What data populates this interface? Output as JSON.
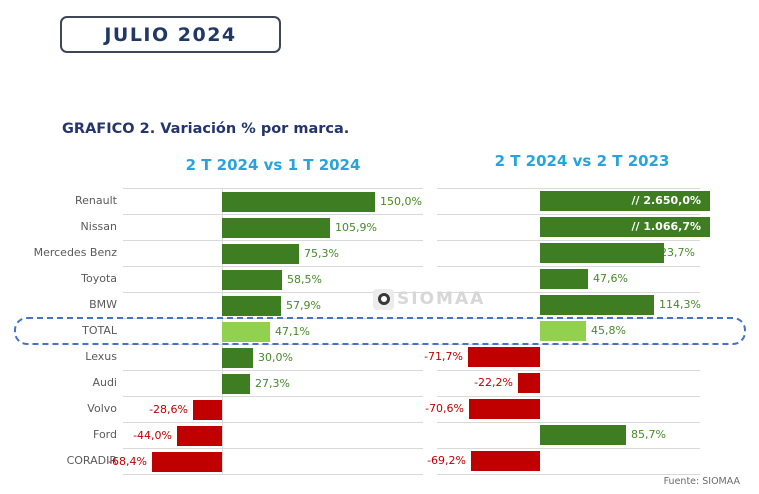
{
  "period_badge": "JULIO 2024",
  "page_title": "GRAFICO 2. Variación % por marca.",
  "watermark_text": "SIOMAA",
  "footer_source": "Fuente: SIOMAA",
  "chart_data": {
    "type": "bar",
    "orientation": "horizontal",
    "grid": "row-separator-lines",
    "legend_position": "none",
    "categories": [
      "Renault",
      "Nissan",
      "Mercedes Benz",
      "Toyota",
      "BMW",
      "TOTAL",
      "Lexus",
      "Audi",
      "Volvo",
      "Ford",
      "CORADIR"
    ],
    "highlight_category": "TOTAL",
    "panels": [
      {
        "title": "2 T 2024 vs 1 T 2024",
        "axis_range_pct": [
          -97,
          197
        ],
        "values": [
          150.0,
          105.9,
          75.3,
          58.5,
          57.9,
          47.1,
          30.0,
          27.3,
          -28.6,
          -44.0,
          -68.4
        ],
        "display_labels": [
          "150,0%",
          "105,9%",
          "75,3%",
          "58,5%",
          "57,9%",
          "47,1%",
          "30,0%",
          "27,3%",
          "-28,6%",
          "-44,0%",
          "-68,4%"
        ],
        "truncated_bars": [
          false,
          false,
          false,
          false,
          false,
          false,
          false,
          false,
          false,
          false,
          false
        ],
        "label_inside_bar": [
          false,
          false,
          false,
          false,
          false,
          false,
          false,
          false,
          false,
          false,
          false
        ],
        "label_partially_hidden": [
          false,
          false,
          false,
          false,
          false,
          false,
          false,
          false,
          false,
          false,
          false
        ]
      },
      {
        "title": "2 T 2024 vs 2 T 2023",
        "axis_range_pct": [
          -103,
          219
        ],
        "values": [
          2650.0,
          1066.7,
          123.7,
          47.6,
          114.3,
          45.8,
          -71.7,
          -22.2,
          -70.6,
          85.7,
          -69.2
        ],
        "display_labels": [
          "// 2.650,0%",
          "// 1.066,7%",
          "123,7%",
          "47,6%",
          "114,3%",
          "45,8%",
          "-71,7%",
          "-22,2%",
          "-70,6%",
          "85,7%",
          "-69,2%"
        ],
        "truncated_bars": [
          true,
          true,
          false,
          false,
          false,
          false,
          false,
          false,
          false,
          false,
          false
        ],
        "label_inside_bar": [
          true,
          true,
          false,
          false,
          false,
          false,
          false,
          false,
          false,
          false,
          false
        ],
        "label_partially_hidden": [
          false,
          false,
          true,
          false,
          false,
          false,
          false,
          false,
          false,
          false,
          false
        ]
      }
    ],
    "colors": {
      "positive_bar": "#3e7d22",
      "total_bar": "#92d050",
      "negative_bar": "#c00000",
      "positive_value_text": "#478a28",
      "negative_value_text": "#c00000",
      "inside_value_text": "#ffffff",
      "gridline": "#d9d9d9",
      "highlight_border": "#4472c4",
      "header_text": "#29a3db",
      "title_text": "#24356b",
      "category_text": "#5a5a5a"
    }
  }
}
